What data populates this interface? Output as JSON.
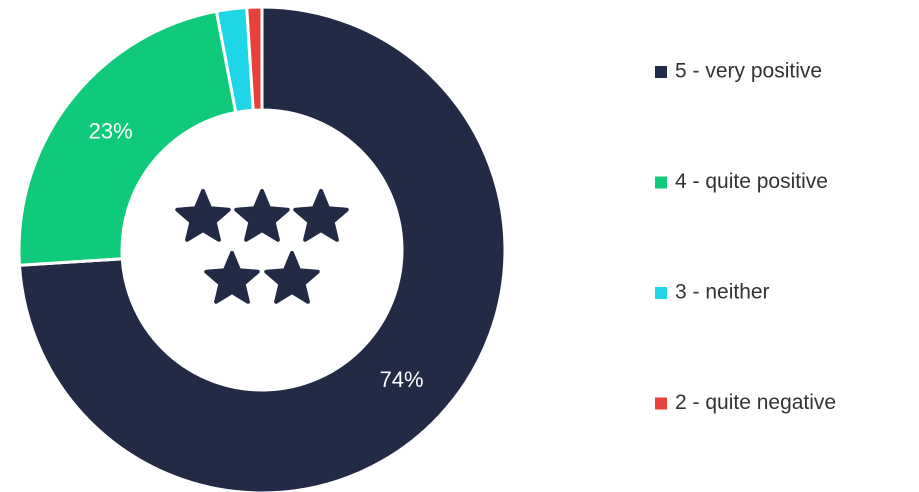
{
  "chart_data": {
    "type": "donut",
    "categories": [
      "5 - very positive",
      "4 - quite positive",
      "3 - neither",
      "2 - quite negative"
    ],
    "values": [
      74,
      23,
      2,
      1
    ],
    "value_labels": [
      "74%",
      "23%",
      null,
      null
    ],
    "colors": [
      "#222a45",
      "#0fca7a",
      "#1ed6e6",
      "#e8403a"
    ],
    "legend": "right"
  }
}
